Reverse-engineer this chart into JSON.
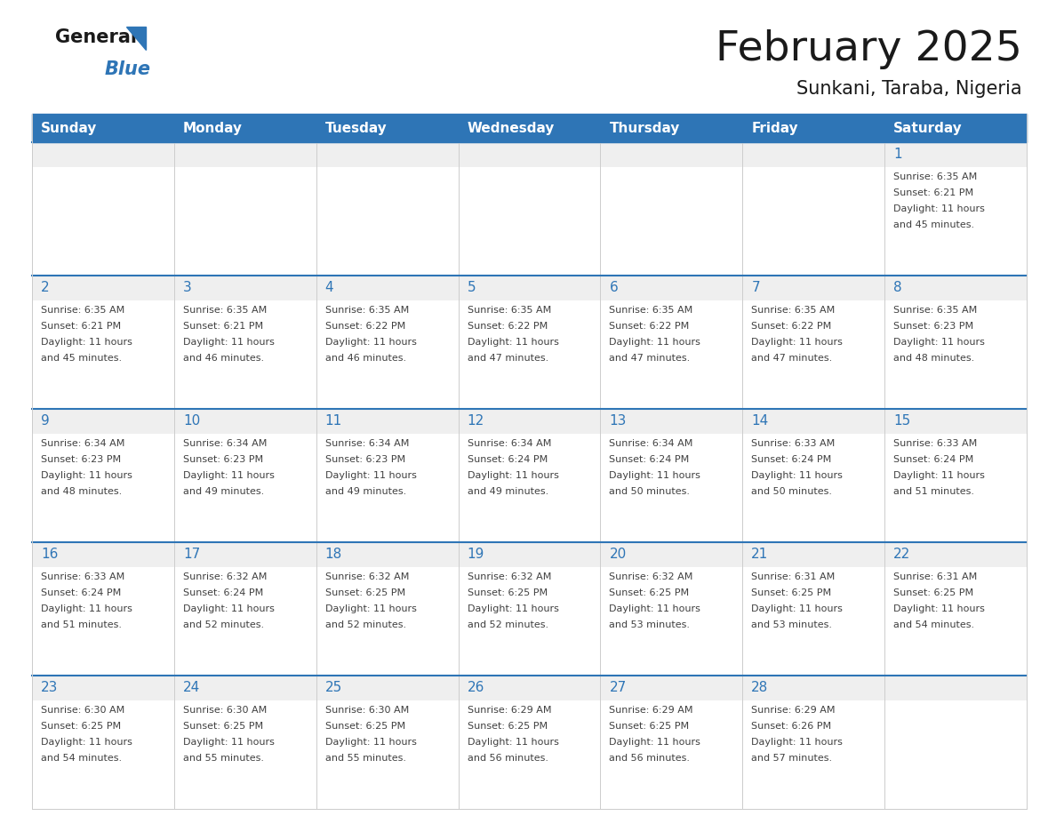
{
  "title": "February 2025",
  "subtitle": "Sunkani, Taraba, Nigeria",
  "header_bg_color": "#2E75B6",
  "header_text_color": "#FFFFFF",
  "cell_top_bg_color": "#E8E8E8",
  "cell_body_bg_color": "#FFFFFF",
  "text_color": "#404040",
  "day_number_color": "#2E75B6",
  "row_border_color": "#2E75B6",
  "col_border_color": "#BBBBBB",
  "days_of_week": [
    "Sunday",
    "Monday",
    "Tuesday",
    "Wednesday",
    "Thursday",
    "Friday",
    "Saturday"
  ],
  "calendar_data": [
    [
      {
        "day": 0,
        "sunrise": "",
        "sunset": "",
        "daylight": ""
      },
      {
        "day": 0,
        "sunrise": "",
        "sunset": "",
        "daylight": ""
      },
      {
        "day": 0,
        "sunrise": "",
        "sunset": "",
        "daylight": ""
      },
      {
        "day": 0,
        "sunrise": "",
        "sunset": "",
        "daylight": ""
      },
      {
        "day": 0,
        "sunrise": "",
        "sunset": "",
        "daylight": ""
      },
      {
        "day": 0,
        "sunrise": "",
        "sunset": "",
        "daylight": ""
      },
      {
        "day": 1,
        "sunrise": "6:35 AM",
        "sunset": "6:21 PM",
        "daylight": "11 hours and 45 minutes."
      }
    ],
    [
      {
        "day": 2,
        "sunrise": "6:35 AM",
        "sunset": "6:21 PM",
        "daylight": "11 hours and 45 minutes."
      },
      {
        "day": 3,
        "sunrise": "6:35 AM",
        "sunset": "6:21 PM",
        "daylight": "11 hours and 46 minutes."
      },
      {
        "day": 4,
        "sunrise": "6:35 AM",
        "sunset": "6:22 PM",
        "daylight": "11 hours and 46 minutes."
      },
      {
        "day": 5,
        "sunrise": "6:35 AM",
        "sunset": "6:22 PM",
        "daylight": "11 hours and 47 minutes."
      },
      {
        "day": 6,
        "sunrise": "6:35 AM",
        "sunset": "6:22 PM",
        "daylight": "11 hours and 47 minutes."
      },
      {
        "day": 7,
        "sunrise": "6:35 AM",
        "sunset": "6:22 PM",
        "daylight": "11 hours and 47 minutes."
      },
      {
        "day": 8,
        "sunrise": "6:35 AM",
        "sunset": "6:23 PM",
        "daylight": "11 hours and 48 minutes."
      }
    ],
    [
      {
        "day": 9,
        "sunrise": "6:34 AM",
        "sunset": "6:23 PM",
        "daylight": "11 hours and 48 minutes."
      },
      {
        "day": 10,
        "sunrise": "6:34 AM",
        "sunset": "6:23 PM",
        "daylight": "11 hours and 49 minutes."
      },
      {
        "day": 11,
        "sunrise": "6:34 AM",
        "sunset": "6:23 PM",
        "daylight": "11 hours and 49 minutes."
      },
      {
        "day": 12,
        "sunrise": "6:34 AM",
        "sunset": "6:24 PM",
        "daylight": "11 hours and 49 minutes."
      },
      {
        "day": 13,
        "sunrise": "6:34 AM",
        "sunset": "6:24 PM",
        "daylight": "11 hours and 50 minutes."
      },
      {
        "day": 14,
        "sunrise": "6:33 AM",
        "sunset": "6:24 PM",
        "daylight": "11 hours and 50 minutes."
      },
      {
        "day": 15,
        "sunrise": "6:33 AM",
        "sunset": "6:24 PM",
        "daylight": "11 hours and 51 minutes."
      }
    ],
    [
      {
        "day": 16,
        "sunrise": "6:33 AM",
        "sunset": "6:24 PM",
        "daylight": "11 hours and 51 minutes."
      },
      {
        "day": 17,
        "sunrise": "6:32 AM",
        "sunset": "6:24 PM",
        "daylight": "11 hours and 52 minutes."
      },
      {
        "day": 18,
        "sunrise": "6:32 AM",
        "sunset": "6:25 PM",
        "daylight": "11 hours and 52 minutes."
      },
      {
        "day": 19,
        "sunrise": "6:32 AM",
        "sunset": "6:25 PM",
        "daylight": "11 hours and 52 minutes."
      },
      {
        "day": 20,
        "sunrise": "6:32 AM",
        "sunset": "6:25 PM",
        "daylight": "11 hours and 53 minutes."
      },
      {
        "day": 21,
        "sunrise": "6:31 AM",
        "sunset": "6:25 PM",
        "daylight": "11 hours and 53 minutes."
      },
      {
        "day": 22,
        "sunrise": "6:31 AM",
        "sunset": "6:25 PM",
        "daylight": "11 hours and 54 minutes."
      }
    ],
    [
      {
        "day": 23,
        "sunrise": "6:30 AM",
        "sunset": "6:25 PM",
        "daylight": "11 hours and 54 minutes."
      },
      {
        "day": 24,
        "sunrise": "6:30 AM",
        "sunset": "6:25 PM",
        "daylight": "11 hours and 55 minutes."
      },
      {
        "day": 25,
        "sunrise": "6:30 AM",
        "sunset": "6:25 PM",
        "daylight": "11 hours and 55 minutes."
      },
      {
        "day": 26,
        "sunrise": "6:29 AM",
        "sunset": "6:25 PM",
        "daylight": "11 hours and 56 minutes."
      },
      {
        "day": 27,
        "sunrise": "6:29 AM",
        "sunset": "6:25 PM",
        "daylight": "11 hours and 56 minutes."
      },
      {
        "day": 28,
        "sunrise": "6:29 AM",
        "sunset": "6:26 PM",
        "daylight": "11 hours and 57 minutes."
      },
      {
        "day": 0,
        "sunrise": "",
        "sunset": "",
        "daylight": ""
      }
    ]
  ]
}
